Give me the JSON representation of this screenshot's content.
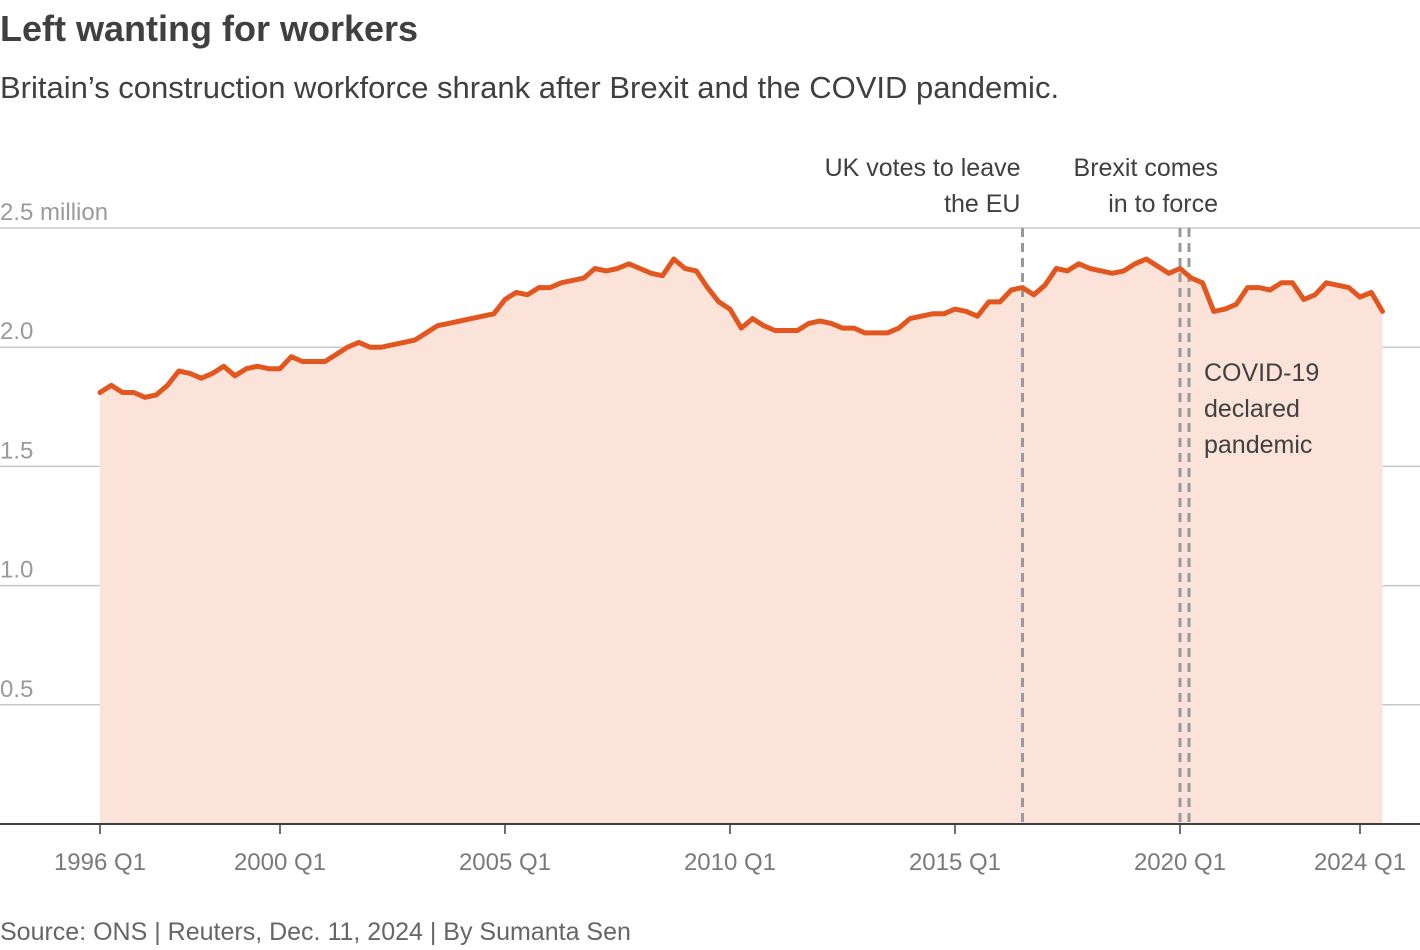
{
  "header": {
    "title": "Left wanting for workers",
    "subtitle": "Britain’s construction workforce shrank after Brexit and the COVID pandemic."
  },
  "footer": {
    "source": "Source: ONS | Reuters, Dec. 11, 2024 | By Sumanta Sen"
  },
  "colors": {
    "line": "#e2571f",
    "area": "#fbe3d9",
    "grid": "#c8c8c8",
    "axis": "#404040",
    "marker": "#999999"
  },
  "chart_data": {
    "type": "area",
    "title": "Left wanting for workers",
    "subtitle": "Britain’s construction workforce shrank after Brexit and the COVID pandemic.",
    "ylabel": "",
    "xlabel": "",
    "ylim": [
      0,
      2.5
    ],
    "y_ticks": [
      {
        "value": 2.5,
        "label": "2.5 million"
      },
      {
        "value": 2.0,
        "label": "2.0"
      },
      {
        "value": 1.5,
        "label": "1.5"
      },
      {
        "value": 1.0,
        "label": "1.0"
      },
      {
        "value": 0.5,
        "label": "0.5"
      }
    ],
    "x_ticks": [
      {
        "value": 1996.0,
        "label": "1996 Q1"
      },
      {
        "value": 2000.0,
        "label": "2000 Q1"
      },
      {
        "value": 2005.0,
        "label": "2005 Q1"
      },
      {
        "value": 2010.0,
        "label": "2010 Q1"
      },
      {
        "value": 2015.0,
        "label": "2015 Q1"
      },
      {
        "value": 2020.0,
        "label": "2020 Q1"
      },
      {
        "value": 2024.0,
        "label": "2024 Q1"
      }
    ],
    "grid": true,
    "unit": "million workers",
    "annotations": [
      {
        "x": 2016.5,
        "lines": [
          "UK votes to leave",
          "the EU"
        ],
        "style": "single"
      },
      {
        "x": 2020.0,
        "lines": [
          "Brexit comes",
          "in to force"
        ],
        "style": "double"
      },
      {
        "x": 2020.2,
        "lines": [
          "COVID-19",
          "declared",
          "pandemic"
        ],
        "style": "double"
      }
    ],
    "series": [
      {
        "values": [
          [
            1996.0,
            1.81
          ],
          [
            1996.25,
            1.84
          ],
          [
            1996.5,
            1.81
          ],
          [
            1996.75,
            1.81
          ],
          [
            1997.0,
            1.79
          ],
          [
            1997.25,
            1.8
          ],
          [
            1997.5,
            1.84
          ],
          [
            1997.75,
            1.9
          ],
          [
            1998.0,
            1.89
          ],
          [
            1998.25,
            1.87
          ],
          [
            1998.5,
            1.89
          ],
          [
            1998.75,
            1.92
          ],
          [
            1999.0,
            1.88
          ],
          [
            1999.25,
            1.91
          ],
          [
            1999.5,
            1.92
          ],
          [
            1999.75,
            1.91
          ],
          [
            2000.0,
            1.91
          ],
          [
            2000.25,
            1.96
          ],
          [
            2000.5,
            1.94
          ],
          [
            2000.75,
            1.94
          ],
          [
            2001.0,
            1.94
          ],
          [
            2001.25,
            1.97
          ],
          [
            2001.5,
            2.0
          ],
          [
            2001.75,
            2.02
          ],
          [
            2002.0,
            2.0
          ],
          [
            2002.25,
            2.0
          ],
          [
            2002.5,
            2.01
          ],
          [
            2002.75,
            2.02
          ],
          [
            2003.0,
            2.03
          ],
          [
            2003.25,
            2.06
          ],
          [
            2003.5,
            2.09
          ],
          [
            2003.75,
            2.1
          ],
          [
            2004.0,
            2.11
          ],
          [
            2004.25,
            2.12
          ],
          [
            2004.5,
            2.13
          ],
          [
            2004.75,
            2.14
          ],
          [
            2005.0,
            2.2
          ],
          [
            2005.25,
            2.23
          ],
          [
            2005.5,
            2.22
          ],
          [
            2005.75,
            2.25
          ],
          [
            2006.0,
            2.25
          ],
          [
            2006.25,
            2.27
          ],
          [
            2006.5,
            2.28
          ],
          [
            2006.75,
            2.29
          ],
          [
            2007.0,
            2.33
          ],
          [
            2007.25,
            2.32
          ],
          [
            2007.5,
            2.33
          ],
          [
            2007.75,
            2.35
          ],
          [
            2008.0,
            2.33
          ],
          [
            2008.25,
            2.31
          ],
          [
            2008.5,
            2.3
          ],
          [
            2008.75,
            2.37
          ],
          [
            2009.0,
            2.33
          ],
          [
            2009.25,
            2.32
          ],
          [
            2009.5,
            2.25
          ],
          [
            2009.75,
            2.19
          ],
          [
            2010.0,
            2.16
          ],
          [
            2010.25,
            2.08
          ],
          [
            2010.5,
            2.12
          ],
          [
            2010.75,
            2.09
          ],
          [
            2011.0,
            2.07
          ],
          [
            2011.25,
            2.07
          ],
          [
            2011.5,
            2.07
          ],
          [
            2011.75,
            2.1
          ],
          [
            2012.0,
            2.11
          ],
          [
            2012.25,
            2.1
          ],
          [
            2012.5,
            2.08
          ],
          [
            2012.75,
            2.08
          ],
          [
            2013.0,
            2.06
          ],
          [
            2013.25,
            2.06
          ],
          [
            2013.5,
            2.06
          ],
          [
            2013.75,
            2.08
          ],
          [
            2014.0,
            2.12
          ],
          [
            2014.25,
            2.13
          ],
          [
            2014.5,
            2.14
          ],
          [
            2014.75,
            2.14
          ],
          [
            2015.0,
            2.16
          ],
          [
            2015.25,
            2.15
          ],
          [
            2015.5,
            2.13
          ],
          [
            2015.75,
            2.19
          ],
          [
            2016.0,
            2.19
          ],
          [
            2016.25,
            2.24
          ],
          [
            2016.5,
            2.25
          ],
          [
            2016.75,
            2.22
          ],
          [
            2017.0,
            2.26
          ],
          [
            2017.25,
            2.33
          ],
          [
            2017.5,
            2.32
          ],
          [
            2017.75,
            2.35
          ],
          [
            2018.0,
            2.33
          ],
          [
            2018.25,
            2.32
          ],
          [
            2018.5,
            2.31
          ],
          [
            2018.75,
            2.32
          ],
          [
            2019.0,
            2.35
          ],
          [
            2019.25,
            2.37
          ],
          [
            2019.5,
            2.34
          ],
          [
            2019.75,
            2.31
          ],
          [
            2020.0,
            2.33
          ],
          [
            2020.25,
            2.29
          ],
          [
            2020.5,
            2.27
          ],
          [
            2020.75,
            2.15
          ],
          [
            2021.0,
            2.16
          ],
          [
            2021.25,
            2.18
          ],
          [
            2021.5,
            2.25
          ],
          [
            2021.75,
            2.25
          ],
          [
            2022.0,
            2.24
          ],
          [
            2022.25,
            2.27
          ],
          [
            2022.5,
            2.27
          ],
          [
            2022.75,
            2.2
          ],
          [
            2023.0,
            2.22
          ],
          [
            2023.25,
            2.27
          ],
          [
            2023.5,
            2.26
          ],
          [
            2023.75,
            2.25
          ],
          [
            2024.0,
            2.21
          ],
          [
            2024.25,
            2.23
          ],
          [
            2024.5,
            2.15
          ]
        ]
      }
    ]
  }
}
